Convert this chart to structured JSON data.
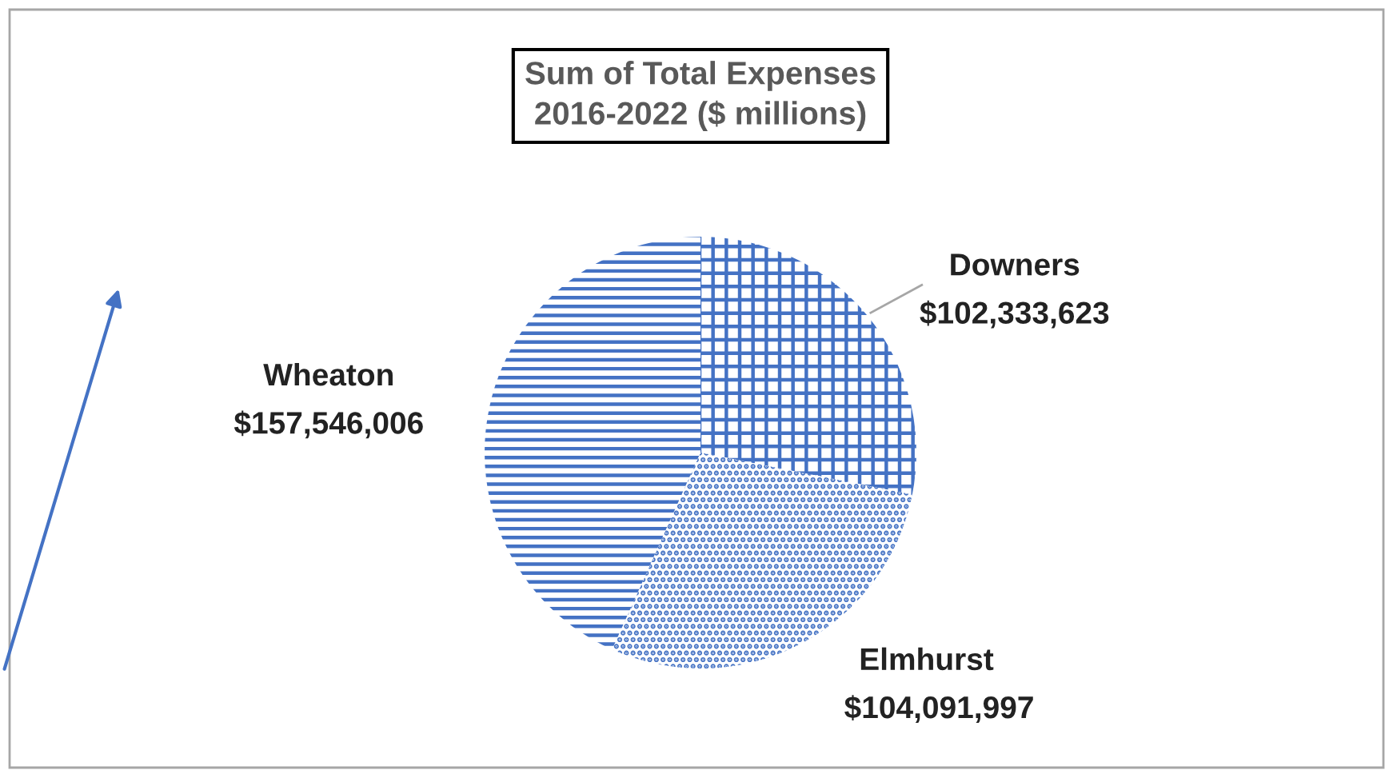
{
  "chart_data": {
    "type": "pie",
    "title": "Sum of Total Expenses\n2016-2022 ($ millions)",
    "categories": [
      "Downers",
      "Elmhurst",
      "Wheaton"
    ],
    "values": [
      102333623,
      104091997,
      157546006
    ],
    "value_labels": [
      "$102,333,623",
      "$104,091,997",
      "$157,546,006"
    ],
    "colors": [
      "#4472c4",
      "#4472c4",
      "#4472c4"
    ],
    "legend": false
  }
}
